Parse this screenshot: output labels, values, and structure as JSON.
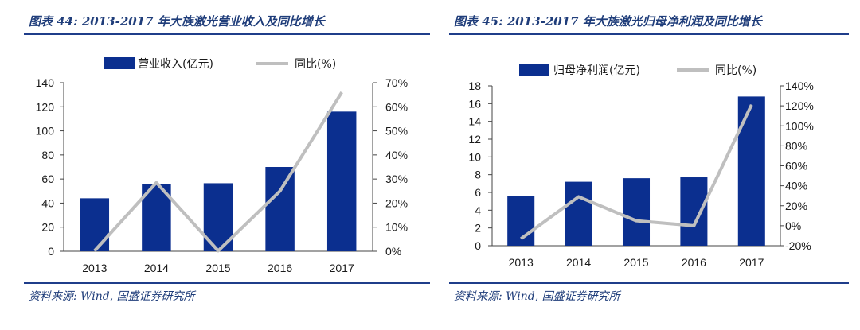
{
  "colors": {
    "bar": "#0b2f8f",
    "line": "#bfbfbf",
    "accent": "#1f3d8a"
  },
  "chart_data": [
    {
      "type": "bar",
      "title": "图表 44:  2013-2017 年大族激光营业收入及同比增长",
      "source": "资料来源:  Wind, 国盛证券研究所",
      "categories": [
        "2013",
        "2014",
        "2015",
        "2016",
        "2017"
      ],
      "series": [
        {
          "name": "营业收入(亿元)",
          "type": "bar",
          "axis": "left",
          "values": [
            44,
            56,
            56.5,
            70,
            116
          ]
        },
        {
          "name": "同比(%)",
          "type": "line",
          "axis": "right",
          "values": [
            0.2,
            28.5,
            0.2,
            25,
            66
          ]
        }
      ],
      "ylim": [
        0,
        140
      ],
      "yticks": [
        "0",
        "20",
        "40",
        "60",
        "80",
        "100",
        "120",
        "140"
      ],
      "y2lim": [
        0,
        70
      ],
      "y2ticks": [
        "0%",
        "10%",
        "20%",
        "30%",
        "40%",
        "50%",
        "60%",
        "70%"
      ],
      "legend": "top",
      "grid": false
    },
    {
      "type": "bar",
      "title": "图表 45:  2013-2017 年大族激光归母净利润及同比增长",
      "source": "资料来源:  Wind, 国盛证券研究所",
      "categories": [
        "2013",
        "2014",
        "2015",
        "2016",
        "2017"
      ],
      "series": [
        {
          "name": "归母净利润(亿元)",
          "type": "bar",
          "axis": "left",
          "values": [
            5.6,
            7.2,
            7.6,
            7.7,
            16.8
          ]
        },
        {
          "name": "同比(%)",
          "type": "line",
          "axis": "right",
          "values": [
            -13,
            29,
            5,
            0,
            121
          ]
        }
      ],
      "ylim": [
        0,
        18
      ],
      "yticks": [
        "0",
        "2",
        "4",
        "6",
        "8",
        "10",
        "12",
        "14",
        "16",
        "18"
      ],
      "y2lim": [
        -20,
        140
      ],
      "y2ticks": [
        "-20%",
        "0%",
        "20%",
        "40%",
        "60%",
        "80%",
        "100%",
        "120%",
        "140%"
      ],
      "legend": "top",
      "grid": false
    }
  ]
}
